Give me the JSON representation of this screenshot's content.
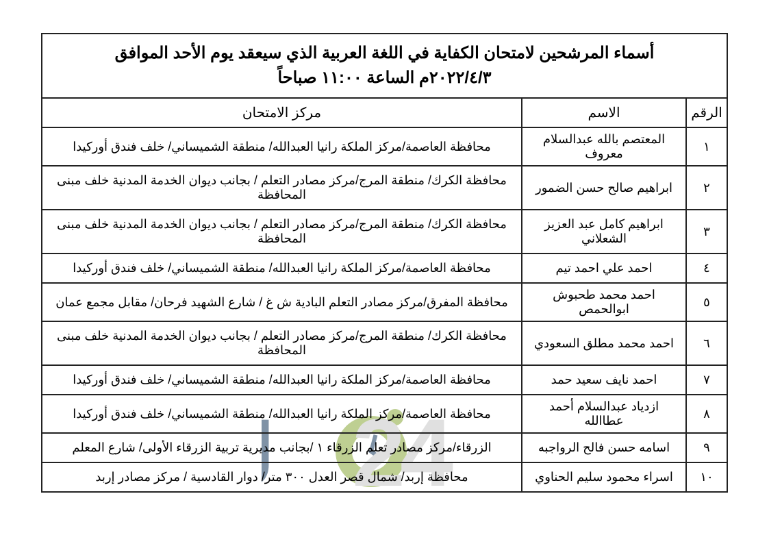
{
  "title_line1": "أسماء المرشحين لامتحان الكفاية في اللغة العربية الذي سيعقد يوم الأحد الموافق",
  "title_line2": "٢٠٢٢/٤/٣م الساعة ١١:٠٠ صباحاً",
  "headers": {
    "num": "الرقم",
    "name": "الاسم",
    "center": "مركز الامتحان"
  },
  "rows": [
    {
      "num": "١",
      "name": "المعتصم بالله عبدالسلام معروف",
      "center": "محافظة العاصمة/مركز الملكة رانيا العبدالله/ منطقة الشميساني/ خلف فندق أوركيدا"
    },
    {
      "num": "٢",
      "name": "ابراهيم صالح حسن الضمور",
      "center": "محافظة الكرك/ منطقة المرج/مركز مصادر التعلم / بجانب ديوان الخدمة المدنية خلف مبنى المحافظة"
    },
    {
      "num": "٣",
      "name": "ابراهيم كامل عبد العزيز الشعلاني",
      "center": "محافظة الكرك/ منطقة المرج/مركز مصادر التعلم / بجانب ديوان الخدمة المدنية خلف مبنى المحافظة"
    },
    {
      "num": "٤",
      "name": "احمد علي احمد تيم",
      "center": "محافظة العاصمة/مركز الملكة رانيا العبدالله/ منطقة الشميساني/ خلف فندق أوركيدا"
    },
    {
      "num": "٥",
      "name": "احمد محمد طحبوش ابوالحمص",
      "center": "محافظة المفرق/مركز مصادر التعلم البادية ش غ / شارع الشهيد فرحان/ مقابل مجمع عمان"
    },
    {
      "num": "٦",
      "name": "احمد محمد مطلق السعودي",
      "center": "محافظة الكرك/ منطقة المرج/مركز مصادر التعلم / بجانب ديوان الخدمة المدنية خلف مبنى المحافظة"
    },
    {
      "num": "٧",
      "name": "احمد نايف سعيد حمد",
      "center": "محافظة العاصمة/مركز الملكة رانيا العبدالله/ منطقة الشميساني/ خلف فندق أوركيدا"
    },
    {
      "num": "٨",
      "name": "ازدياد عبدالسلام  أحمد عطاالله",
      "center": "محافظة العاصمة/مركز الملكة رانيا العبدالله/ منطقة الشميساني/ خلف فندق أوركيدا"
    },
    {
      "num": "٩",
      "name": "اسامه حسن فالح الرواجبه",
      "center": "الزرقاء/مركز مصادر تعلم الزرقاء ١ /بجانب مديرية تربية الزرقاء الأولى/  شارع المعلم"
    },
    {
      "num": "١٠",
      "name": "اسراء محمود سليم الحناوي",
      "center": "محافظة إربد/ شمال قصر العدل ٣٠٠ متر/ دوار القادسية / مركز مصادر إربد"
    }
  ],
  "watermark": {
    "colors": {
      "j": "#173a5e",
      "o": "#8aa83a",
      "two": "#c7c7c7",
      "four": "#c7c7c7"
    }
  }
}
